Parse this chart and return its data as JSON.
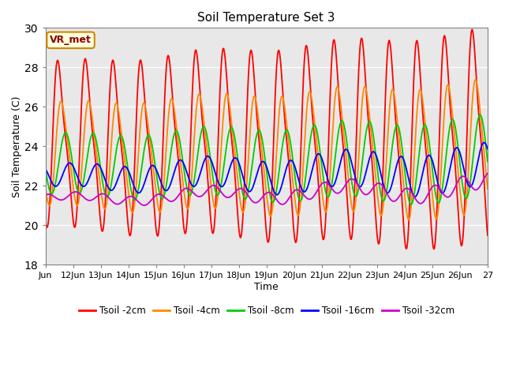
{
  "title": "Soil Temperature Set 3",
  "xlabel": "Time",
  "ylabel": "Soil Temperature (C)",
  "ylim": [
    18,
    30
  ],
  "xlim": [
    11,
    27
  ],
  "xtick_labels": [
    "Jun",
    "12Jun",
    "13Jun",
    "14Jun",
    "15Jun",
    "16Jun",
    "17Jun",
    "18Jun",
    "19Jun",
    "20Jun",
    "21Jun",
    "22Jun",
    "23Jun",
    "24Jun",
    "25Jun",
    "26Jun",
    "27"
  ],
  "xtick_positions": [
    11,
    12,
    13,
    14,
    15,
    16,
    17,
    18,
    19,
    20,
    21,
    22,
    23,
    24,
    25,
    26,
    27
  ],
  "ytick_positions": [
    18,
    20,
    22,
    24,
    26,
    28,
    30
  ],
  "bg_color": "#e8e8e8",
  "fig_color": "#ffffff",
  "annotation_text": "VR_met",
  "line_colors": [
    "#ff0000",
    "#ff8800",
    "#00cc00",
    "#0000ff",
    "#cc00cc"
  ],
  "line_labels": [
    "Tsoil -2cm",
    "Tsoil -4cm",
    "Tsoil -8cm",
    "Tsoil -16cm",
    "Tsoil -32cm"
  ]
}
